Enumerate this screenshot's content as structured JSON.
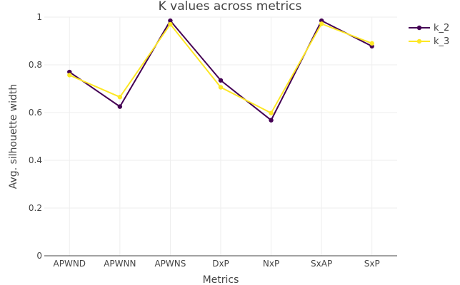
{
  "chart_data": {
    "type": "line",
    "title": "K values across metrics",
    "xlabel": "Metrics",
    "ylabel": "Avg. silhouette width",
    "categories": [
      "APWND",
      "APWNN",
      "APWNS",
      "DxP",
      "NxP",
      "SxAP",
      "SxP"
    ],
    "ylim": [
      0,
      1
    ],
    "yticks": [
      0,
      0.2,
      0.4,
      0.6,
      0.8,
      1
    ],
    "ytick_labels": [
      "0",
      "0.2",
      "0.4",
      "0.6",
      "0.8",
      "1"
    ],
    "grid": true,
    "legend_position": "top-right",
    "series": [
      {
        "name": "k_2",
        "color": "#440154",
        "values": [
          0.77,
          0.625,
          0.985,
          0.735,
          0.568,
          0.985,
          0.878
        ]
      },
      {
        "name": "k_3",
        "color": "#fde725",
        "values": [
          0.757,
          0.665,
          0.97,
          0.706,
          0.598,
          0.972,
          0.89
        ]
      }
    ]
  }
}
